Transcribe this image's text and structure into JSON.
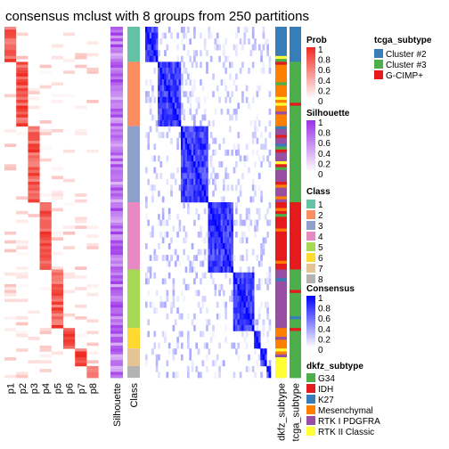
{
  "title": "consensus mclust with 8 groups from 250 partitions",
  "chart_data": {
    "type": "heatmap",
    "title": "consensus mclust with 8 groups from 250 partitions",
    "n_samples": 120,
    "group_sizes": [
      12,
      22,
      26,
      23,
      20,
      7,
      6,
      4
    ],
    "class_colors": [
      "#66C2A5",
      "#FC8D62",
      "#8DA0CB",
      "#E78AC3",
      "#A6D854",
      "#FFD92F",
      "#E5C494",
      "#B3B3B3"
    ],
    "prob_columns": [
      "p1",
      "p2",
      "p3",
      "p4",
      "p5",
      "p6",
      "p7",
      "p8"
    ],
    "annotation_columns": [
      "Silhouette",
      "Class"
    ],
    "right_annotation_columns": [
      "dkfz_subtype",
      "tcga_subtype"
    ],
    "legends": {
      "prob": {
        "title": "Prob",
        "ticks": [
          "1",
          "0.8",
          "0.6",
          "0.4",
          "0.2",
          "0"
        ],
        "low": "#FFFFFF",
        "high": "#EF2A1F"
      },
      "silhouette": {
        "title": "Silhouette",
        "ticks": [
          "1",
          "0.8",
          "0.6",
          "0.4",
          "0.2",
          "0"
        ],
        "low": "#FFFFFF",
        "high": "#9B30E6"
      },
      "class": {
        "title": "Class",
        "items": [
          "1",
          "2",
          "3",
          "4",
          "5",
          "6",
          "7",
          "8"
        ]
      },
      "consensus": {
        "title": "Consensus",
        "ticks": [
          "1",
          "0.8",
          "0.6",
          "0.4",
          "0.2",
          "0"
        ],
        "low": "#FFFFFF",
        "high": "#0000FF"
      },
      "dkfz_subtype": {
        "title": "dkfz_subtype",
        "items": [
          {
            "label": "G34",
            "color": "#4DAF4A"
          },
          {
            "label": "IDH",
            "color": "#E41A1C"
          },
          {
            "label": "K27",
            "color": "#377EB8"
          },
          {
            "label": "Mesenchymal",
            "color": "#FF7F00"
          },
          {
            "label": "RTK I PDGFRA",
            "color": "#984EA3"
          },
          {
            "label": "RTK II Classic",
            "color": "#FFFF33"
          }
        ]
      },
      "tcga_subtype": {
        "title": "tcga_subtype",
        "items": [
          {
            "label": "Cluster #2",
            "color": "#377EB8"
          },
          {
            "label": "Cluster #3",
            "color": "#4DAF4A"
          },
          {
            "label": "G-CIMP+",
            "color": "#E41A1C"
          }
        ]
      }
    }
  }
}
